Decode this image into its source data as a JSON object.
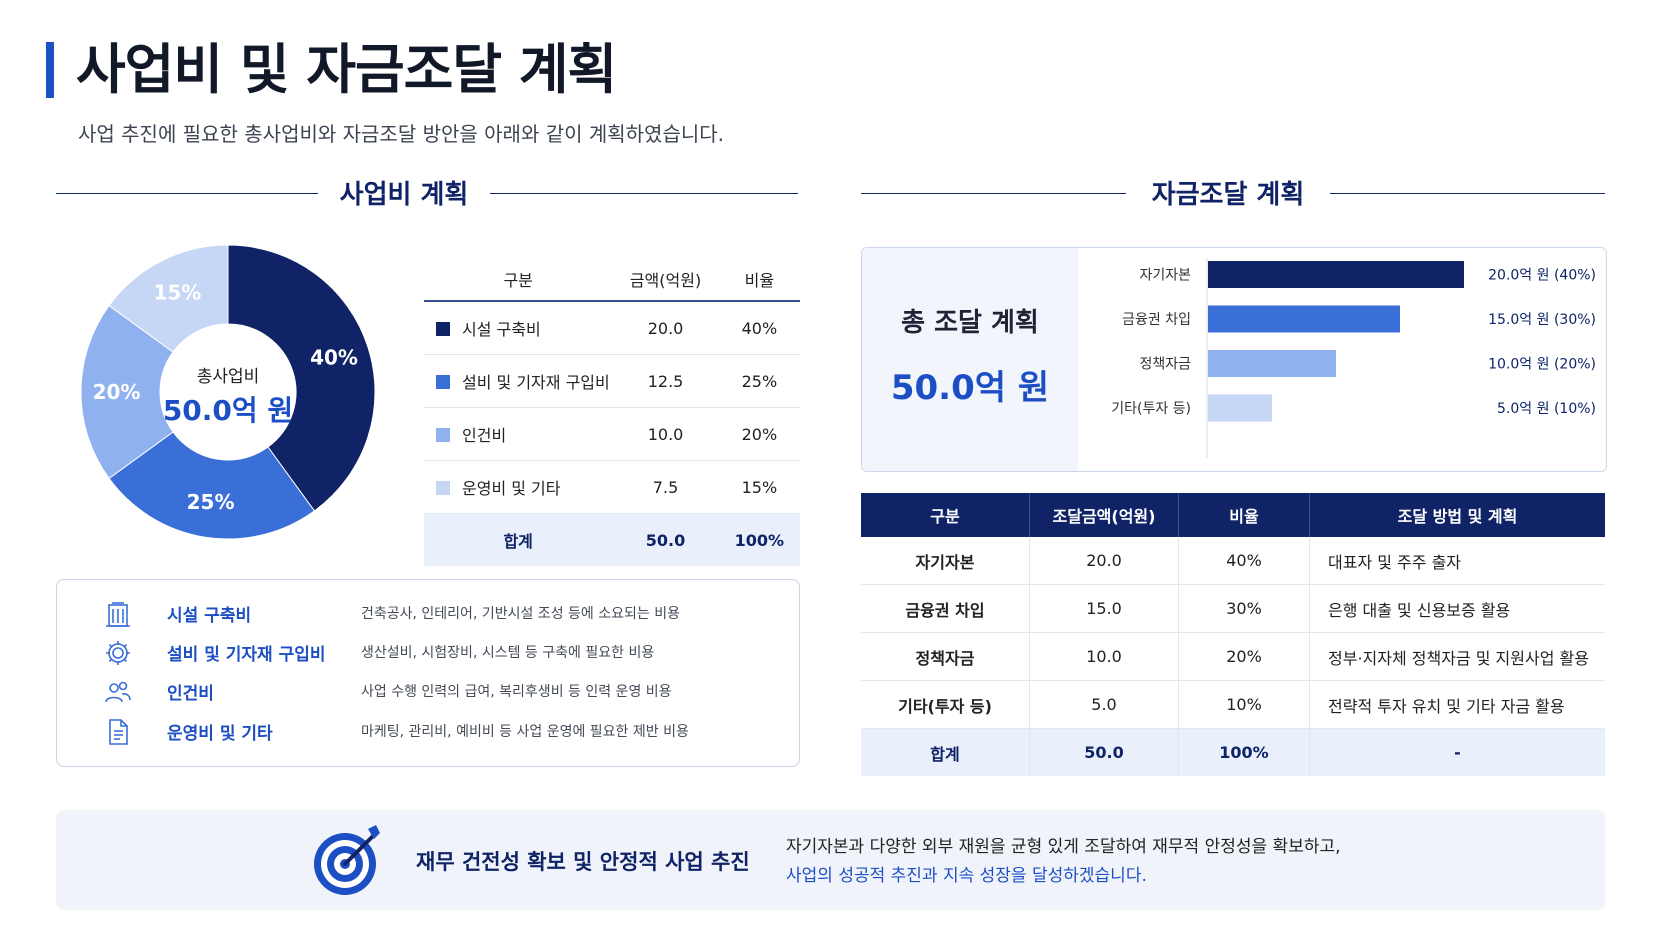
{
  "header": {
    "title": "사업비 및 자금조달 계획",
    "subtitle": "사업 추진에 필요한 총사업비와 자금조달 방안을 아래와 같이 계획하였습니다."
  },
  "colors": {
    "c1": "#0f2366",
    "c2": "#3b6fd8",
    "c3": "#8fb1f0",
    "c4": "#c6d6f5",
    "accent": "#1d4fc4"
  },
  "cost": {
    "section_title": "사업비 계획",
    "donut_center_label": "총사업비",
    "donut_center_value": "50.0억 원",
    "table": {
      "headers": [
        "구분",
        "금액(억원)",
        "비율"
      ],
      "rows": [
        {
          "label": "시설 구축비",
          "amount": "20.0",
          "ratio": "40%"
        },
        {
          "label": "설비 및 기자재 구입비",
          "amount": "12.5",
          "ratio": "25%"
        },
        {
          "label": "인건비",
          "amount": "10.0",
          "ratio": "20%"
        },
        {
          "label": "운영비 및 기타",
          "amount": "7.5",
          "ratio": "15%"
        }
      ],
      "total": {
        "label": "합계",
        "amount": "50.0",
        "ratio": "100%"
      }
    },
    "descriptions": [
      {
        "icon": "building-icon",
        "name": "시설 구축비",
        "text": "건축공사, 인테리어, 기반시설 조성 등에 소요되는 비용"
      },
      {
        "icon": "gear-icon",
        "name": "설비 및 기자재 구입비",
        "text": "생산설비, 시험장비, 시스템 등 구축에 필요한 비용"
      },
      {
        "icon": "people-icon",
        "name": "인건비",
        "text": "사업 수행 인력의 급여, 복리후생비 등 인력 운영 비용"
      },
      {
        "icon": "document-icon",
        "name": "운영비 및 기타",
        "text": "마케팅, 관리비, 예비비 등 사업 운영에 필요한 제반 비용"
      }
    ]
  },
  "chart_data": [
    {
      "type": "pie",
      "categories": [
        "시설 구축비",
        "설비 및 기자재 구입비",
        "인건비",
        "운영비 및 기타"
      ],
      "values": [
        40,
        25,
        20,
        15
      ],
      "labels": [
        "40%",
        "25%",
        "20%",
        "15%"
      ],
      "center_label": "총사업비",
      "center_value": "50.0억 원"
    },
    {
      "type": "bar",
      "orientation": "horizontal",
      "categories": [
        "자기자본",
        "금융권 차입",
        "정책자금",
        "기타(투자 등)"
      ],
      "values": [
        20.0,
        15.0,
        10.0,
        5.0
      ],
      "value_labels": [
        "20.0억 원 (40%)",
        "15.0억 원 (30%)",
        "10.0억 원 (20%)",
        "5.0억 원 (10%)"
      ],
      "xlim": [
        0,
        20
      ]
    }
  ],
  "funding": {
    "section_title": "자금조달 계획",
    "summary_label": "총 조달 계획",
    "summary_value": "50.0억 원",
    "table": {
      "headers": [
        "구분",
        "조달금액(억원)",
        "비율",
        "조달 방법 및 계획"
      ],
      "rows": [
        {
          "category": "자기자본",
          "amount": "20.0",
          "ratio": "40%",
          "method": "대표자 및 주주 출자"
        },
        {
          "category": "금융권 차입",
          "amount": "15.0",
          "ratio": "30%",
          "method": "은행 대출 및 신용보증 활용"
        },
        {
          "category": "정책자금",
          "amount": "10.0",
          "ratio": "20%",
          "method": "정부·지자체 정책자금 및 지원사업 활용"
        },
        {
          "category": "기타(투자 등)",
          "amount": "5.0",
          "ratio": "10%",
          "method": "전략적 투자 유치 및 기타 자금 활용"
        }
      ],
      "total": {
        "category": "합계",
        "amount": "50.0",
        "ratio": "100%",
        "method": "-"
      }
    }
  },
  "banner": {
    "icon": "target-icon",
    "title": "재무 건전성 확보 및 안정적 사업 추진",
    "line1": "자기자본과 다양한 외부 재원을 균형 있게 조달하여 재무적 안정성을 확보하고,",
    "line2": "사업의 성공적 추진과 지속 성장을 달성하겠습니다."
  }
}
